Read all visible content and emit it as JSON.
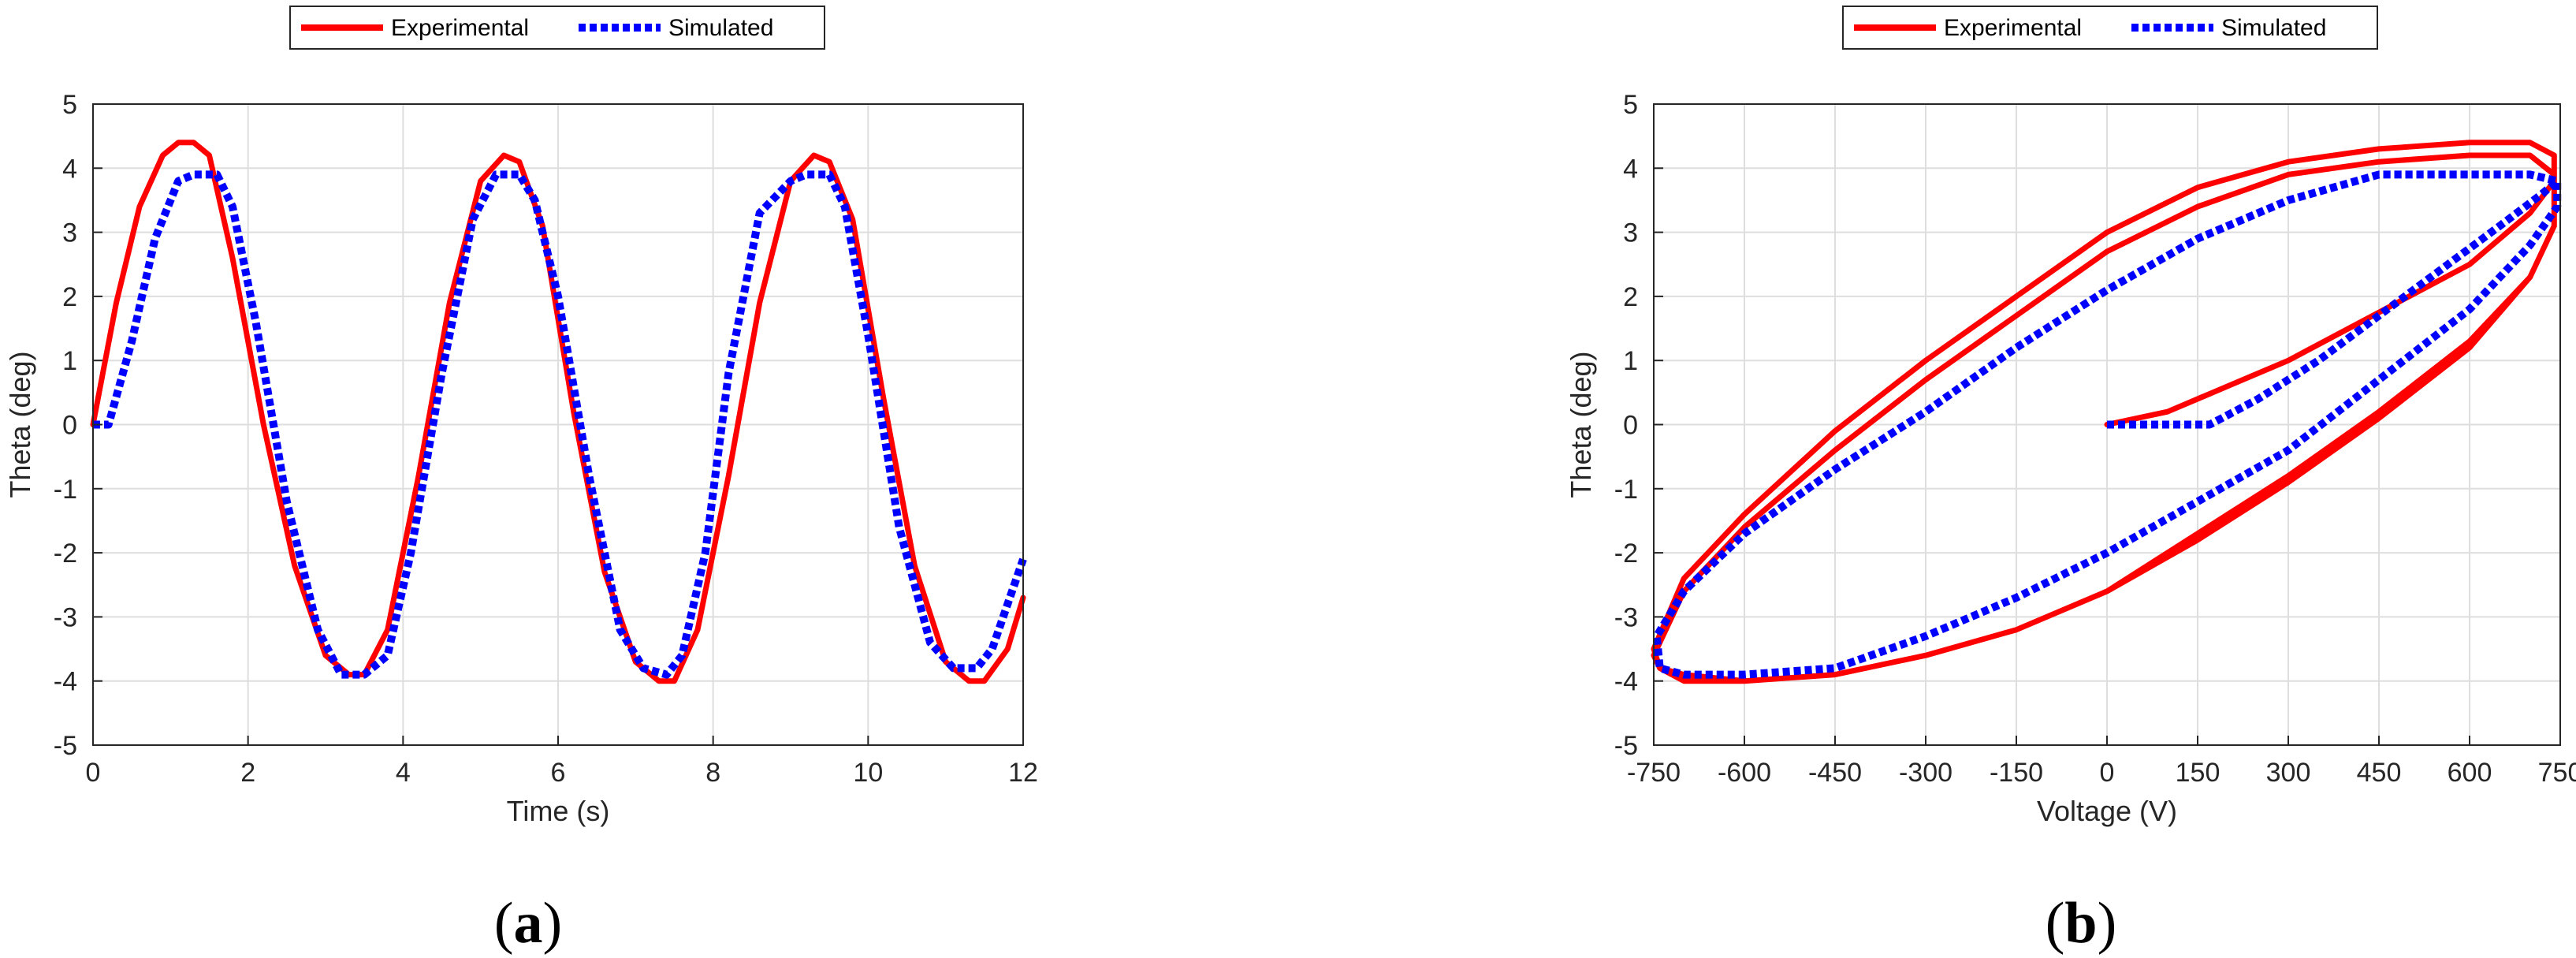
{
  "colors": {
    "experimental": "#ff0000",
    "simulated": "#0000ff",
    "grid": "#dedede",
    "axis": "#262626"
  },
  "chart_data": [
    {
      "id": "a",
      "type": "line",
      "panel_label": "a",
      "xlabel": "Time (s)",
      "ylabel": "Theta (deg)",
      "xlim": [
        0,
        12
      ],
      "ylim": [
        -5,
        5
      ],
      "xticks": [
        0,
        2,
        4,
        6,
        8,
        10,
        12
      ],
      "xtick_labels": [
        "0",
        "2",
        "4",
        "6",
        "8",
        "10",
        "12"
      ],
      "yticks": [
        -5,
        -4,
        -3,
        -2,
        -1,
        0,
        1,
        2,
        3,
        4,
        5
      ],
      "ytick_labels": [
        "-5",
        "-4",
        "-3",
        "-2",
        "-1",
        "0",
        "1",
        "2",
        "3",
        "4",
        "5"
      ],
      "grid": true,
      "legend": {
        "placement": "top-center",
        "orientation": "horizontal"
      },
      "series": [
        {
          "name": "Experimental",
          "color": "#ff0000",
          "style": "solid",
          "x": [
            0,
            0.3,
            0.6,
            0.9,
            1.1,
            1.3,
            1.5,
            1.8,
            2.2,
            2.6,
            3.0,
            3.3,
            3.5,
            3.8,
            4.2,
            4.6,
            5.0,
            5.3,
            5.5,
            5.8,
            6.2,
            6.6,
            7.0,
            7.3,
            7.5,
            7.8,
            8.2,
            8.6,
            9.0,
            9.3,
            9.5,
            9.8,
            10.2,
            10.6,
            11.0,
            11.3,
            11.5,
            11.8,
            12.0
          ],
          "y": [
            0.0,
            1.9,
            3.4,
            4.2,
            4.4,
            4.4,
            4.2,
            2.6,
            0.0,
            -2.2,
            -3.6,
            -3.9,
            -3.9,
            -3.2,
            -0.8,
            1.9,
            3.8,
            4.2,
            4.1,
            3.1,
            0.2,
            -2.3,
            -3.7,
            -4.0,
            -4.0,
            -3.2,
            -0.8,
            1.9,
            3.8,
            4.2,
            4.1,
            3.2,
            0.4,
            -2.2,
            -3.7,
            -4.0,
            -4.0,
            -3.5,
            -2.7
          ]
        },
        {
          "name": "Simulated",
          "color": "#0000ff",
          "style": "dotted",
          "x": [
            0,
            0.2,
            0.5,
            0.8,
            1.1,
            1.3,
            1.6,
            1.8,
            2.1,
            2.5,
            2.9,
            3.2,
            3.5,
            3.8,
            4.1,
            4.5,
            4.9,
            5.2,
            5.5,
            5.7,
            6.0,
            6.4,
            6.8,
            7.1,
            7.4,
            7.6,
            7.9,
            8.2,
            8.6,
            9.0,
            9.2,
            9.5,
            9.7,
            10.0,
            10.4,
            10.8,
            11.1,
            11.4,
            11.6,
            11.8,
            12.0
          ],
          "y": [
            0.0,
            0.0,
            1.3,
            2.9,
            3.8,
            3.9,
            3.9,
            3.4,
            1.6,
            -1.2,
            -3.2,
            -3.9,
            -3.9,
            -3.6,
            -2.0,
            0.8,
            3.2,
            3.9,
            3.9,
            3.5,
            2.0,
            -0.8,
            -3.2,
            -3.8,
            -3.9,
            -3.6,
            -2.0,
            0.8,
            3.3,
            3.8,
            3.9,
            3.9,
            3.4,
            1.4,
            -1.6,
            -3.4,
            -3.8,
            -3.8,
            -3.5,
            -2.8,
            -2.1
          ]
        }
      ]
    },
    {
      "id": "b",
      "type": "line",
      "panel_label": "b",
      "xlabel": "Voltage (V)",
      "ylabel": "Theta (deg)",
      "xlim": [
        -750,
        750
      ],
      "ylim": [
        -5,
        5
      ],
      "xticks": [
        -750,
        -600,
        -450,
        -300,
        -150,
        0,
        150,
        300,
        450,
        600,
        750
      ],
      "xtick_labels": [
        "-750",
        "-600",
        "-450",
        "-300",
        "-150",
        "0",
        "150",
        "300",
        "450",
        "600",
        "750"
      ],
      "yticks": [
        -5,
        -4,
        -3,
        -2,
        -1,
        0,
        1,
        2,
        3,
        4,
        5
      ],
      "ytick_labels": [
        "-5",
        "-4",
        "-3",
        "-2",
        "-1",
        "0",
        "1",
        "2",
        "3",
        "4",
        "5"
      ],
      "grid": true,
      "legend": {
        "placement": "top-right",
        "orientation": "horizontal"
      },
      "series": [
        {
          "name": "Experimental",
          "color": "#ff0000",
          "style": "solid",
          "x": [
            0,
            100,
            200,
            300,
            400,
            500,
            600,
            700,
            740,
            740,
            700,
            600,
            450,
            300,
            150,
            0,
            -150,
            -300,
            -450,
            -600,
            -700,
            -750,
            -740,
            -700,
            -600,
            -450,
            -300,
            -150,
            0,
            150,
            300,
            450,
            600,
            700,
            740,
            740,
            700,
            600,
            450,
            300,
            150,
            0,
            -150,
            -300,
            -450,
            -600,
            -700,
            -750,
            -740,
            -700,
            -600,
            -450,
            -300,
            -150,
            0,
            150,
            300,
            450,
            600,
            700,
            740,
            740
          ],
          "y": [
            0,
            0.2,
            0.6,
            1.0,
            1.5,
            2.0,
            2.5,
            3.3,
            3.8,
            4.2,
            4.4,
            4.4,
            4.3,
            4.1,
            3.7,
            3.0,
            2.0,
            1.0,
            -0.1,
            -1.4,
            -2.4,
            -3.5,
            -3.8,
            -4.0,
            -4.0,
            -3.9,
            -3.6,
            -3.2,
            -2.6,
            -1.8,
            -0.9,
            0.1,
            1.2,
            2.3,
            3.1,
            3.9,
            4.2,
            4.2,
            4.1,
            3.9,
            3.4,
            2.7,
            1.7,
            0.7,
            -0.4,
            -1.6,
            -2.6,
            -3.6,
            -3.8,
            -3.9,
            -4.0,
            -3.9,
            -3.6,
            -3.2,
            -2.6,
            -1.7,
            -0.8,
            0.2,
            1.3,
            2.3,
            3.1,
            4.0
          ]
        },
        {
          "name": "Simulated",
          "color": "#0000ff",
          "style": "dotted",
          "x": [
            0,
            100,
            170,
            250,
            350,
            450,
            550,
            650,
            720,
            745,
            745,
            700,
            600,
            450,
            300,
            150,
            0,
            -150,
            -300,
            -450,
            -600,
            -700,
            -745,
            -740,
            -700,
            -600,
            -450,
            -300,
            -150,
            0,
            150,
            300,
            450,
            600,
            700,
            745,
            745,
            700,
            600,
            450,
            300,
            150,
            0,
            -150,
            -300,
            -450,
            -600,
            -700,
            -745
          ],
          "y": [
            0,
            0,
            0,
            0.4,
            1.0,
            1.7,
            2.4,
            3.1,
            3.6,
            3.8,
            3.8,
            3.9,
            3.9,
            3.9,
            3.5,
            2.9,
            2.1,
            1.2,
            0.2,
            -0.7,
            -1.7,
            -2.6,
            -3.3,
            -3.8,
            -3.9,
            -3.9,
            -3.8,
            -3.3,
            -2.7,
            -2.0,
            -1.2,
            -0.4,
            0.7,
            1.8,
            2.8,
            3.4,
            3.8,
            3.9,
            3.9,
            3.9,
            3.5,
            2.9,
            2.1,
            1.2,
            0.2,
            -0.7,
            -1.7,
            -2.6,
            -3.3
          ]
        }
      ]
    }
  ]
}
